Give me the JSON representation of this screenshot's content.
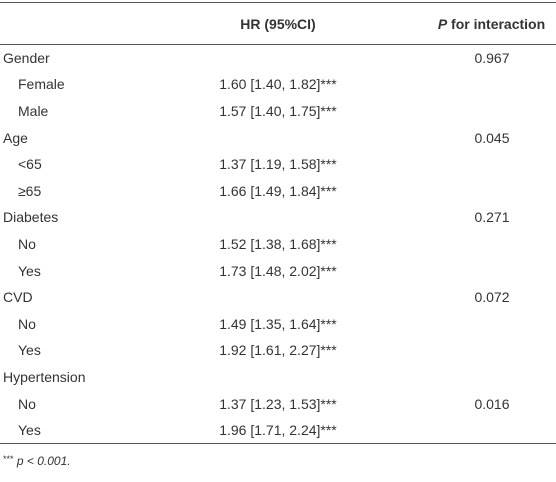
{
  "header": {
    "hr": "HR (95%CI)",
    "p_italic": "P",
    "p_rest": " for interaction"
  },
  "groups": [
    {
      "name": "Gender",
      "p": "0.967",
      "rows": [
        {
          "label": "Female",
          "hr": "1.60 [1.40, 1.82]***"
        },
        {
          "label": "Male",
          "hr": "1.57 [1.40, 1.75]***"
        }
      ]
    },
    {
      "name": "Age",
      "p": "0.045",
      "rows": [
        {
          "label": "<65",
          "hr": "1.37 [1.19, 1.58]***"
        },
        {
          "label": "≥65",
          "hr": "1.66 [1.49, 1.84]***"
        }
      ]
    },
    {
      "name": "Diabetes",
      "p": "0.271",
      "rows": [
        {
          "label": "No",
          "hr": "1.52 [1.38, 1.68]***"
        },
        {
          "label": "Yes",
          "hr": "1.73 [1.48, 2.02]***"
        }
      ]
    },
    {
      "name": "CVD",
      "p": "0.072",
      "rows": [
        {
          "label": "No",
          "hr": "1.49 [1.35, 1.64]***"
        },
        {
          "label": "Yes",
          "hr": "1.92 [1.61, 2.27]***"
        }
      ]
    },
    {
      "name": "Hypertension",
      "rows": [
        {
          "label": "No",
          "hr": "1.37 [1.23, 1.53]***",
          "p": "0.016"
        },
        {
          "label": "Yes",
          "hr": "1.96 [1.71, 2.24]***"
        }
      ]
    }
  ],
  "footnote": {
    "mark": "***",
    "text": "p < 0.001."
  }
}
